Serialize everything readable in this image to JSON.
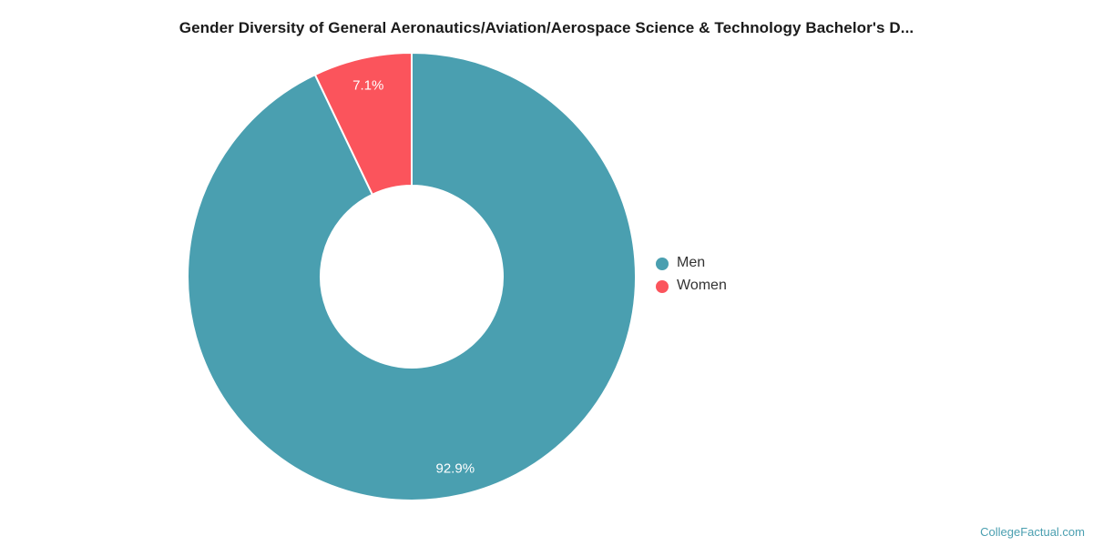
{
  "title": "Gender Diversity of General Aeronautics/Aviation/Aerospace Science & Technology Bachelor's D...",
  "watermark": "CollegeFactual.com",
  "colors": {
    "men": "#4A9FB0",
    "women": "#FB545C",
    "title_text": "#1a1a1a",
    "legend_text": "#333333",
    "data_label_text": "#ffffff",
    "watermark_text": "#4A9FB0",
    "background": "#ffffff",
    "slice_border": "#ffffff"
  },
  "legend": {
    "position": "right",
    "items": [
      {
        "label": "Men",
        "color": "#4A9FB0"
      },
      {
        "label": "Women",
        "color": "#FB545C"
      }
    ]
  },
  "chart_data": {
    "type": "pie",
    "subtype": "donut",
    "title": "Gender Diversity of General Aeronautics/Aviation/Aerospace Science & Technology Bachelor's D...",
    "categories": [
      "Men",
      "Women"
    ],
    "values": [
      92.9,
      7.1
    ],
    "data_labels": [
      "92.9%",
      "7.1%"
    ],
    "colors": [
      "#4A9FB0",
      "#FB545C"
    ],
    "start_angle_deg": 0,
    "direction": "clockwise",
    "inner_radius_pct": 41,
    "legend_position": "right",
    "grid": false
  }
}
